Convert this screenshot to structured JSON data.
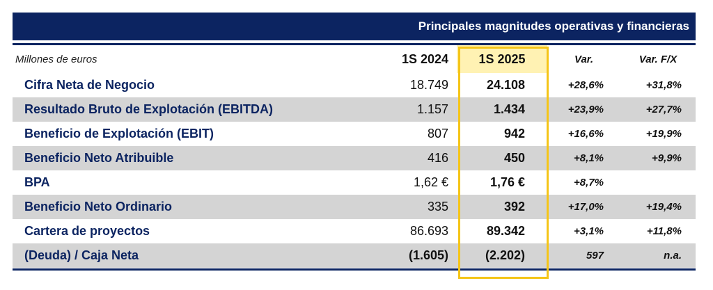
{
  "title": "Principales magnitudes operativas y financieras",
  "header": {
    "unit_label": "Millones de euros",
    "col_2024": "1S 2024",
    "col_2025": "1S 2025",
    "col_var": "Var.",
    "col_var_fx": "Var. F/X"
  },
  "rows": [
    {
      "label": "Cifra Neta de Negocio",
      "y2024": "18.749",
      "y2025": "24.108",
      "var": "+28,6%",
      "var_fx": "+31,8%"
    },
    {
      "label": "Resultado Bruto de Explotación (EBITDA)",
      "y2024": "1.157",
      "y2025": "1.434",
      "var": "+23,9%",
      "var_fx": "+27,7%"
    },
    {
      "label": "Beneficio de Explotación (EBIT)",
      "y2024": "807",
      "y2025": "942",
      "var": "+16,6%",
      "var_fx": "+19,9%"
    },
    {
      "label": "Beneficio Neto Atribuible",
      "y2024": "416",
      "y2025": "450",
      "var": "+8,1%",
      "var_fx": "+9,9%"
    },
    {
      "label": "BPA",
      "y2024": "1,62 €",
      "y2025": "1,76 €",
      "var": "+8,7%",
      "var_fx": ""
    },
    {
      "label": "Beneficio Neto Ordinario",
      "y2024": "335",
      "y2025": "392",
      "var": "+17,0%",
      "var_fx": "+19,4%"
    },
    {
      "label": "Cartera de proyectos",
      "y2024": "86.693",
      "y2025": "89.342",
      "var": "+3,1%",
      "var_fx": "+11,8%"
    },
    {
      "label": "(Deuda) / Caja Neta",
      "y2024": "(1.605)",
      "y2025": "(2.202)",
      "var": "597",
      "var_fx": "n.a."
    }
  ],
  "colors": {
    "navy": "#0c2461",
    "highlight_fill": "#fff2b3",
    "highlight_border": "#f5c518",
    "row_shade": "#d4d4d4"
  }
}
